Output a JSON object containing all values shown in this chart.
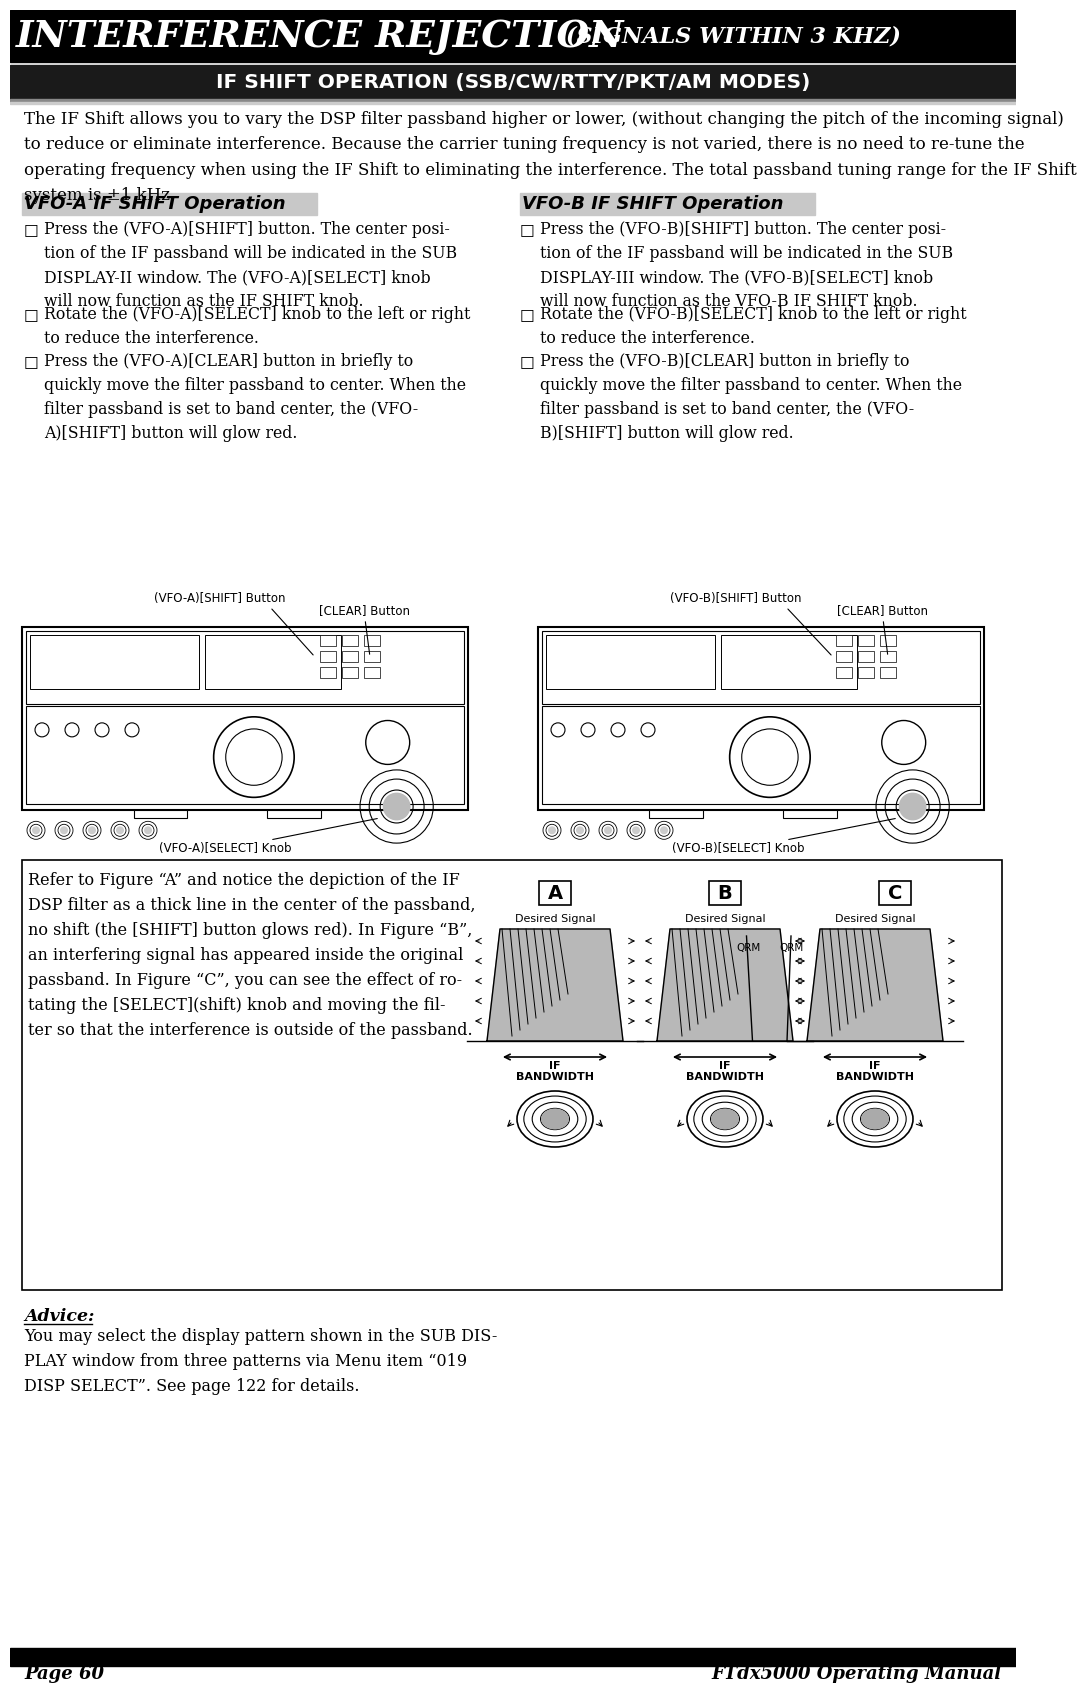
{
  "page_bg": "#ffffff",
  "title_main": "Interference Rejection",
  "title_sub": "(Signals within 3 khz)",
  "section_title": "IF Shift Operation (SSB/CW/RTTY/PKT/AM Modes)",
  "intro_text": "The IF Shift allows you to vary the DSP filter passband higher or lower, (without changing the pitch of the incoming signal)\nto reduce or eliminate interference. Because the carrier tuning frequency is not varied, there is no need to re-tune the\noperating frequency when using the IF Shift to eliminating the interference. The total passband tuning range for the IF Shift\nsystem is ±1 kHz.",
  "vfo_a_title": "VFO-A IF SHIFT Operation",
  "vfo_b_title": "VFO-B IF SHIFT Operation",
  "vfo_a_texts": [
    "Press the (VFO-A)[SHIFT] button. The center posi-\ntion of the IF passband will be indicated in the SUB\nDISPLAY-II window. The (VFO-A)[SELECT] knob\nwill now function as the IF SHIFT knob.",
    "Rotate the (VFO-A)[SELECT] knob to the left or right\nto reduce the interference.",
    "Press the (VFO-A)[CLEAR] button in briefly to\nquickly move the filter passband to center. When the\nfilter passband is set to band center, the (VFO-\nA)[SHIFT] button will glow red."
  ],
  "vfo_b_texts": [
    "Press the (VFO-B)[SHIFT] button. The center posi-\ntion of the IF passband will be indicated in the SUB\nDISPLAY-III window. The (VFO-B)[SELECT] knob\nwill now function as the VFO-B IF SHIFT knob.",
    "Rotate the (VFO-B)[SELECT] knob to the left or right\nto reduce the interference.",
    "Press the (VFO-B)[CLEAR] button in briefly to\nquickly move the filter passband to center. When the\nfilter passband is set to band center, the (VFO-\nB)[SHIFT] button will glow red."
  ],
  "fig_ref_text": "Refer to Figure “A” and notice the depiction of the IF\nDSP filter as a thick line in the center of the passband,\nno shift (the [SHIFT] button glows red). In Figure “B”,\nan interfering signal has appeared inside the original\npassband. In Figure “C”, you can see the effect of ro-\ntating the [SELECT](shift) knob and moving the fil-\nter so that the interference is outside of the passband.",
  "advice_title": "Advice:",
  "advice_text": "You may select the display pattern shown in the SUB DIS-\nPLAY window from three patterns via Menu item “019\nDISP SELECT”. See page 122 for details.",
  "page_footer_left": "Page 60",
  "page_footer_right": "FTdx5000 Operating Manual",
  "label_vfo_a_shift": "(VFO-A)[SHIFT] Button",
  "label_clear_left": "[CLEAR] Button",
  "label_vfo_a_select": "(VFO-A)[SELECT] Knob",
  "label_vfo_b_shift": "(VFO-B)[SHIFT] Button",
  "label_clear_right": "[CLEAR] Button",
  "label_vfo_b_select": "(VFO-B)[SELECT] Knob"
}
